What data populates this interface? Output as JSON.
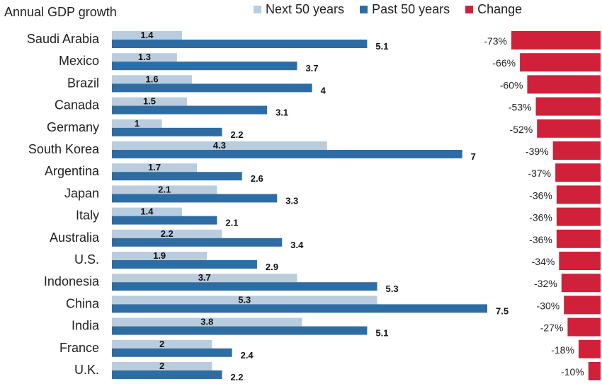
{
  "chart_data": {
    "type": "bar",
    "subtitle": "Annual GDP growth",
    "categories": [
      "Saudi Arabia",
      "Mexico",
      "Brazil",
      "Canada",
      "Germany",
      "South Korea",
      "Argentina",
      "Japan",
      "Italy",
      "Australia",
      "U.S.",
      "Indonesia",
      "China",
      "India",
      "France",
      "U.K."
    ],
    "series": [
      {
        "name": "Next 50 years",
        "color": "#b9cddf",
        "values": [
          1.4,
          1.3,
          1.6,
          1.5,
          1,
          4.3,
          1.7,
          2.1,
          1.4,
          2.2,
          1.9,
          3.7,
          5.3,
          3.8,
          2,
          2
        ],
        "labels": [
          "1.4",
          "1.3",
          "1.6",
          "1.5",
          "1",
          "4.3",
          "1.7",
          "2.1",
          "1.4",
          "2.2",
          "1.9",
          "3.7",
          "5.3",
          "3.8",
          "2",
          "2"
        ]
      },
      {
        "name": "Past 50 years",
        "color": "#2e6da4",
        "values": [
          5.1,
          3.7,
          4,
          3.1,
          2.2,
          7,
          2.6,
          3.3,
          2.1,
          3.4,
          2.9,
          5.3,
          7.5,
          5.1,
          2.4,
          2.2
        ],
        "labels": [
          "5.1",
          "3.7",
          "4",
          "3.1",
          "2.2",
          "7",
          "2.6",
          "3.3",
          "2.1",
          "3.4",
          "2.9",
          "5.3",
          "7.5",
          "5.1",
          "2.4",
          "2.2"
        ]
      },
      {
        "name": "Change",
        "color": "#d0203a",
        "values": [
          -73,
          -66,
          -60,
          -53,
          -52,
          -39,
          -37,
          -36,
          -36,
          -36,
          -34,
          -32,
          -30,
          -27,
          -18,
          -10
        ],
        "labels": [
          "-73%",
          "-66%",
          "-60%",
          "-53%",
          "-52%",
          "-39%",
          "-37%",
          "-36%",
          "-36%",
          "-36%",
          "-34%",
          "-32%",
          "-30%",
          "-27%",
          "-18%",
          "-10%"
        ]
      }
    ],
    "xlim": [
      0,
      7.5
    ],
    "change_range": [
      -73,
      0
    ],
    "legend_position": "top",
    "grid": false
  }
}
